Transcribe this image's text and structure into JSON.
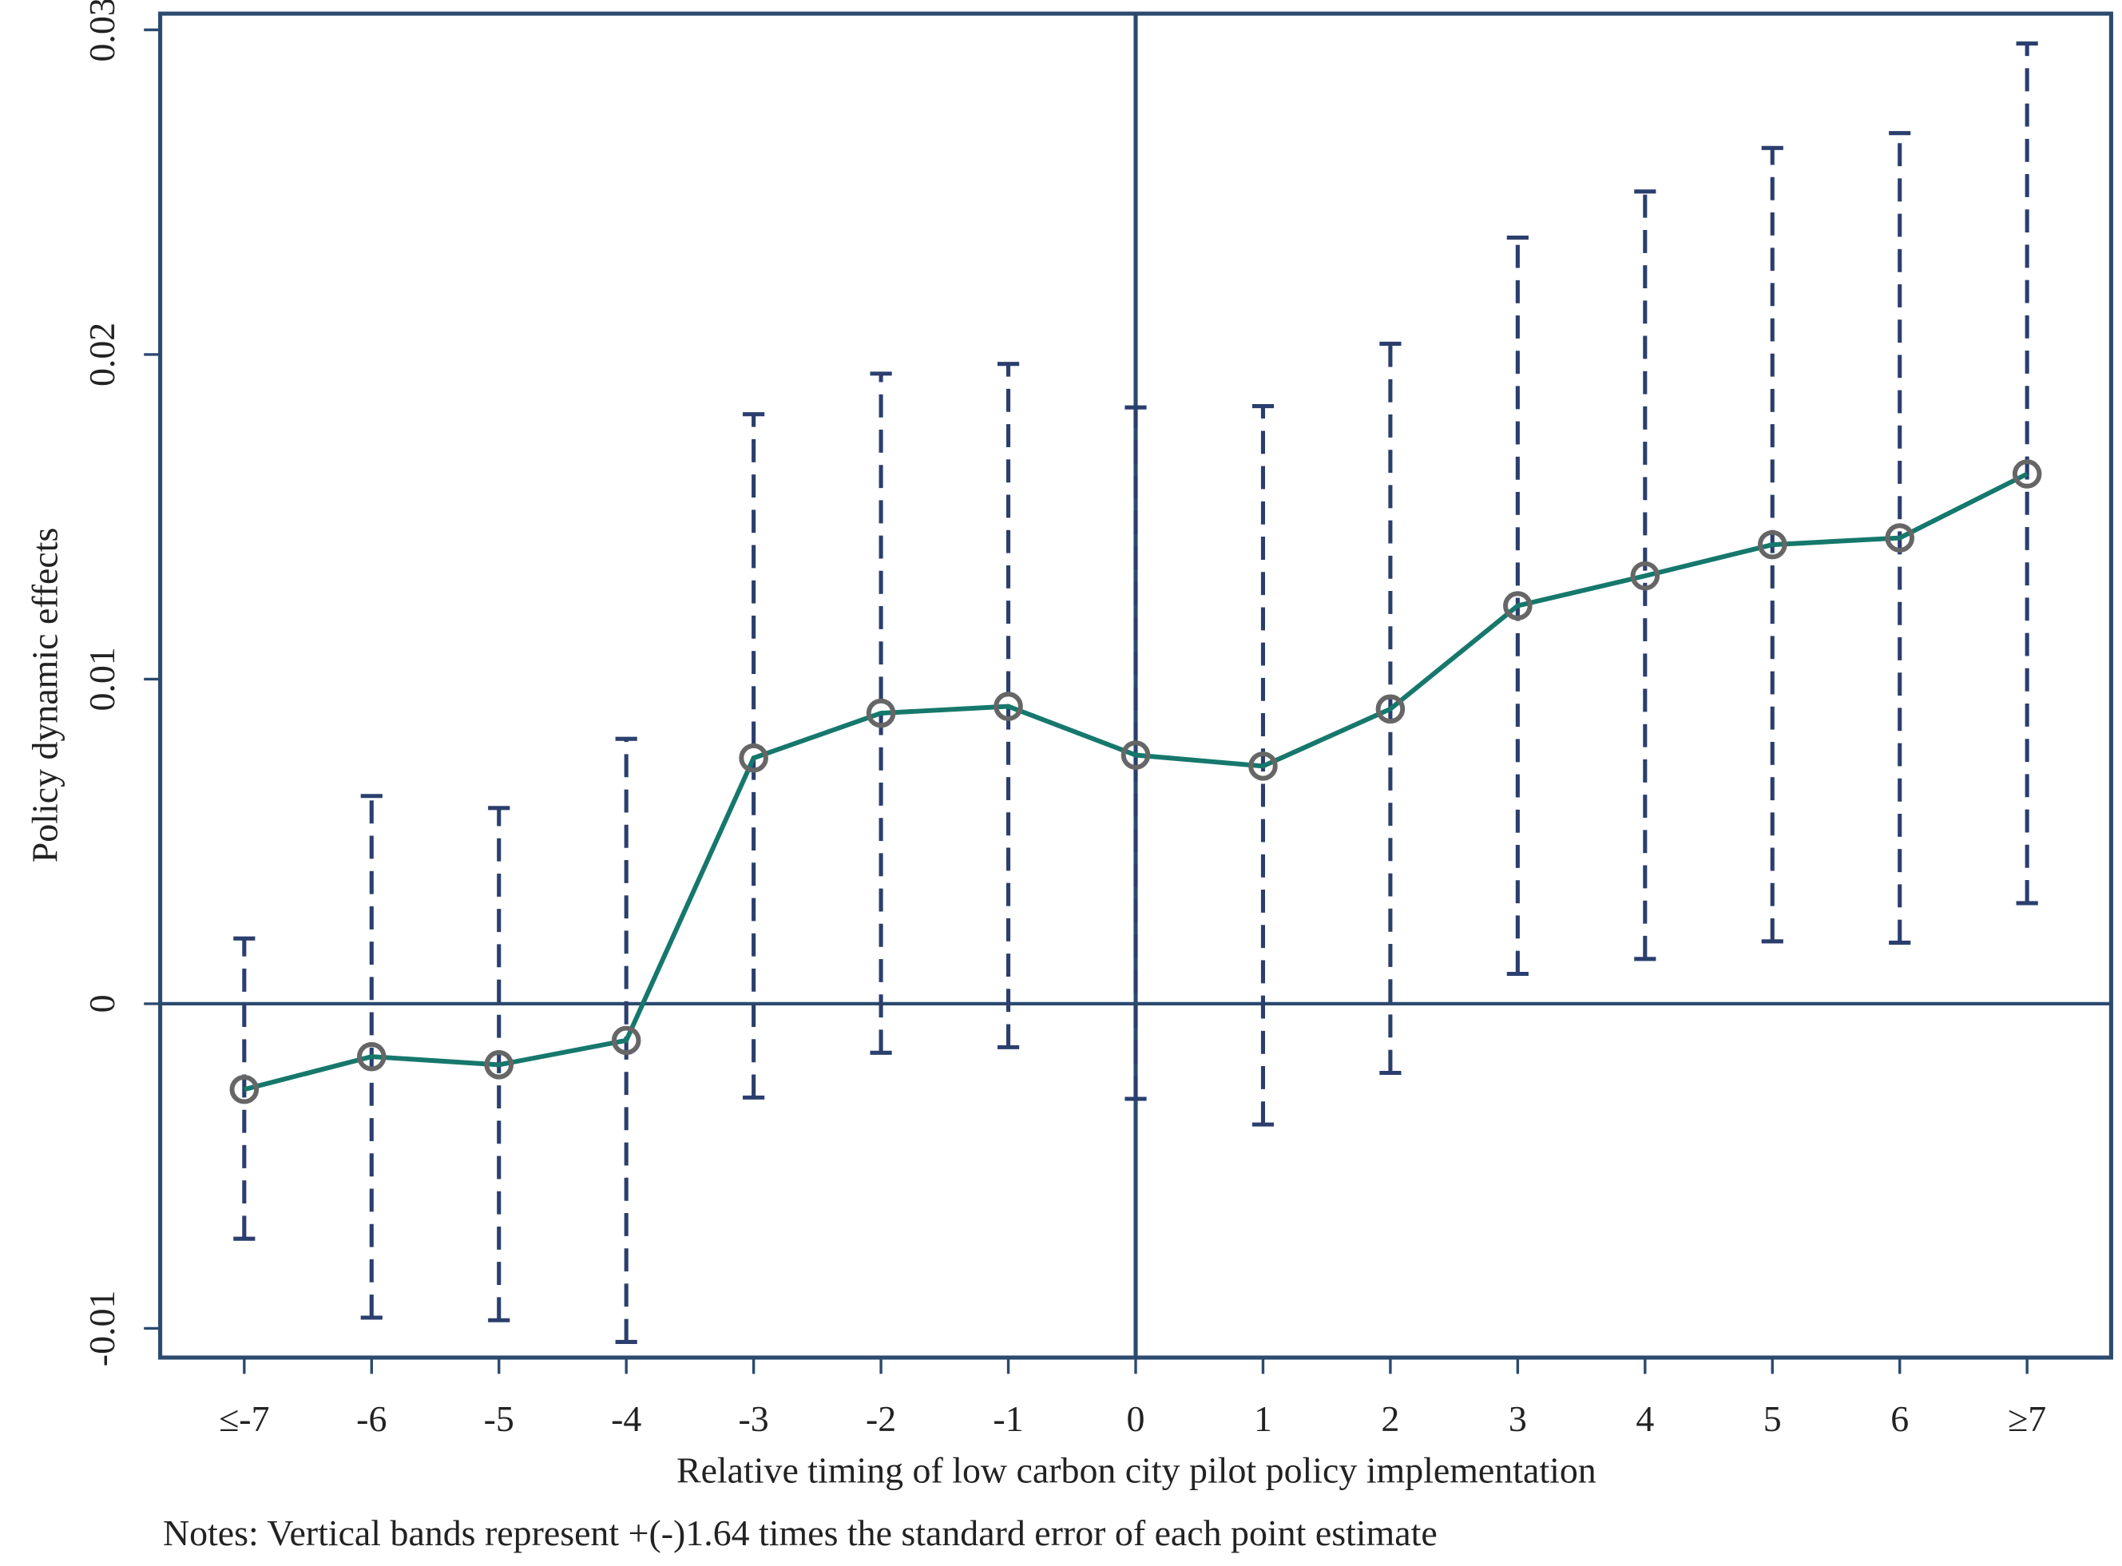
{
  "chart_data": {
    "type": "line",
    "y_label": "Policy dynamic effects",
    "x_label": "Relative timing of low carbon city pilot policy implementation",
    "notes": "Notes: Vertical bands represent +(-)1.64 times the standard error of each point estimate",
    "categories": [
      "≤-7",
      "-6",
      "-5",
      "-4",
      "-3",
      "-2",
      "-1",
      "0",
      "1",
      "2",
      "3",
      "4",
      "5",
      "6",
      "≥7"
    ],
    "series": [
      {
        "color": "#16786c",
        "marker_color": "#666666",
        "band_color": "#2b3f6e",
        "values": [
          -0.00264,
          -0.00163,
          -0.00188,
          -0.00113,
          0.00757,
          0.00895,
          0.00916,
          0.00766,
          0.00732,
          0.00908,
          0.01226,
          0.01318,
          0.01414,
          0.01435,
          0.01632
        ],
        "ci_lower": [
          -0.00724,
          -0.00967,
          -0.00975,
          -0.01042,
          -0.00289,
          -0.00151,
          -0.00134,
          -0.00293,
          -0.00372,
          -0.00213,
          0.00092,
          0.00138,
          0.00192,
          0.00188,
          0.0031
        ],
        "ci_upper": [
          0.00201,
          0.0064,
          0.00603,
          0.00816,
          0.01816,
          0.01941,
          0.01971,
          0.01837,
          0.01841,
          0.02033,
          0.0236,
          0.02502,
          0.02636,
          0.02682,
          0.02958
        ]
      }
    ],
    "ylim": [
      -0.0109,
      0.0305
    ],
    "yticks": [
      -0.01,
      0,
      0.01,
      0.02,
      0.03
    ],
    "reference_lines": {
      "x": "0",
      "y": 0
    },
    "frame_color": "#2b4a6e"
  }
}
